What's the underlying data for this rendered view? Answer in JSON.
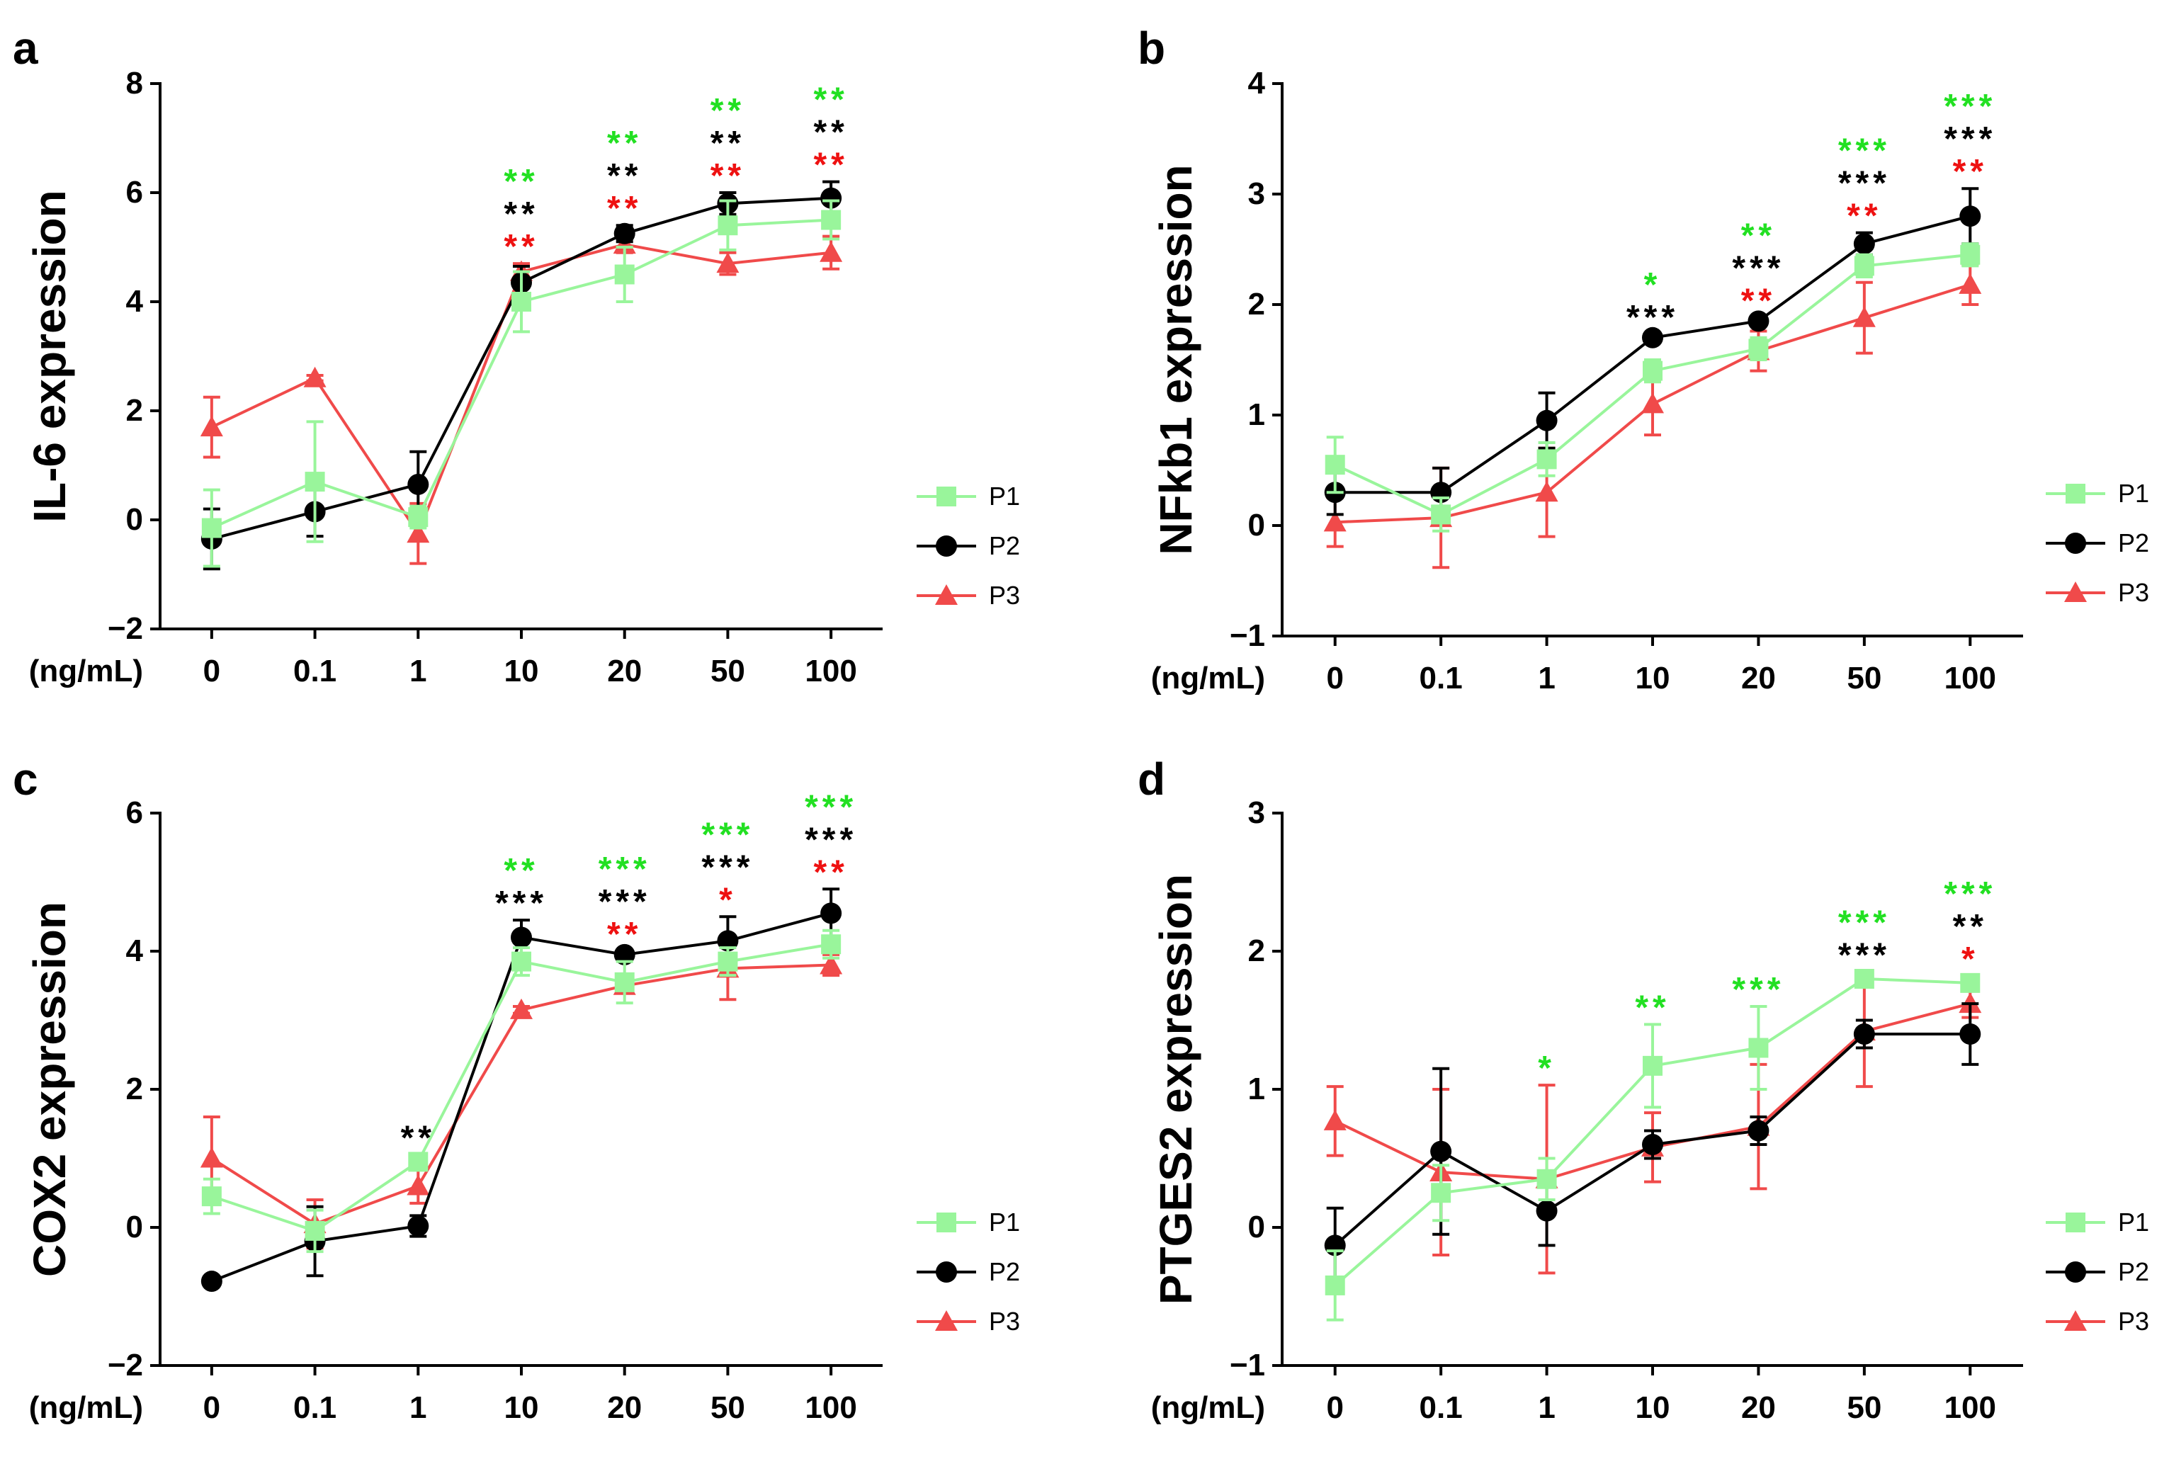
{
  "figure": {
    "x_prefix": "(ng/mL)",
    "colors": {
      "P1": "#99F59B",
      "P2": "#000000",
      "P3": "#F04A4A",
      "sig_green": "#22E022",
      "sig_black": "#000000",
      "sig_red": "#EE1111",
      "axis": "#000000"
    }
  },
  "chart_data": [
    {
      "panel": "a",
      "type": "line",
      "ylabel": "IL-6 expression",
      "categories": [
        "0",
        "0.1",
        "1",
        "10",
        "20",
        "50",
        "100"
      ],
      "ylim": [
        -2,
        8
      ],
      "yticks": [
        -2,
        0,
        2,
        4,
        6,
        8
      ],
      "ytick_labels": [
        "−2",
        "0",
        "2",
        "4",
        "6",
        "8"
      ],
      "legend": {
        "position": "right",
        "entries": [
          "P1",
          "P2",
          "P3"
        ]
      },
      "series": [
        {
          "name": "P1",
          "marker": "square",
          "values": [
            -0.15,
            0.7,
            0.05,
            4.0,
            4.5,
            5.4,
            5.5
          ],
          "errors": [
            0.7,
            1.1,
            0.2,
            0.55,
            0.5,
            0.45,
            0.35
          ]
        },
        {
          "name": "P2",
          "marker": "circle",
          "values": [
            -0.35,
            0.15,
            0.65,
            4.35,
            5.25,
            5.8,
            5.9
          ],
          "errors": [
            0.55,
            0.45,
            0.6,
            0.3,
            0.15,
            0.2,
            0.3
          ]
        },
        {
          "name": "P3",
          "marker": "triangle",
          "values": [
            1.7,
            2.6,
            -0.25,
            4.55,
            5.05,
            4.7,
            4.9
          ],
          "errors": [
            0.55,
            0.05,
            0.55,
            0.15,
            0.15,
            0.2,
            0.3
          ]
        }
      ],
      "significance": [
        {
          "category": "10",
          "green": "**",
          "black": "**",
          "red": "**"
        },
        {
          "category": "20",
          "green": "**",
          "black": "**",
          "red": "**"
        },
        {
          "category": "50",
          "green": "**",
          "black": "**",
          "red": "**"
        },
        {
          "category": "100",
          "green": "**",
          "black": "**",
          "red": "**"
        }
      ]
    },
    {
      "panel": "b",
      "type": "line",
      "ylabel": "NFkb1 expression",
      "categories": [
        "0",
        "0.1",
        "1",
        "10",
        "20",
        "50",
        "100"
      ],
      "ylim": [
        -1,
        4
      ],
      "yticks": [
        -1,
        0,
        1,
        2,
        3,
        4
      ],
      "ytick_labels": [
        "−1",
        "0",
        "1",
        "2",
        "3",
        "4"
      ],
      "legend": {
        "position": "right",
        "entries": [
          "P1",
          "P2",
          "P3"
        ]
      },
      "series": [
        {
          "name": "P1",
          "marker": "square",
          "values": [
            0.55,
            0.1,
            0.6,
            1.4,
            1.6,
            2.35,
            2.45
          ],
          "errors": [
            0.25,
            0.15,
            0.15,
            0.1,
            0.1,
            0.1,
            0.1
          ]
        },
        {
          "name": "P2",
          "marker": "circle",
          "values": [
            0.3,
            0.3,
            0.95,
            1.7,
            1.85,
            2.55,
            2.8
          ],
          "errors": [
            0.2,
            0.22,
            0.25,
            0.03,
            0.03,
            0.1,
            0.25
          ]
        },
        {
          "name": "P3",
          "marker": "triangle",
          "values": [
            0.03,
            0.07,
            0.3,
            1.1,
            1.58,
            1.88,
            2.18
          ],
          "errors": [
            0.22,
            0.45,
            0.4,
            0.28,
            0.18,
            0.32,
            0.18
          ]
        }
      ],
      "significance": [
        {
          "category": "10",
          "green": "*",
          "black": "***",
          "red": ""
        },
        {
          "category": "20",
          "green": "**",
          "black": "***",
          "red": "**"
        },
        {
          "category": "50",
          "green": "***",
          "black": "***",
          "red": "**"
        },
        {
          "category": "100",
          "green": "***",
          "black": "***",
          "red": "**"
        }
      ]
    },
    {
      "panel": "c",
      "type": "line",
      "ylabel": "COX2 expression",
      "categories": [
        "0",
        "0.1",
        "1",
        "10",
        "20",
        "50",
        "100"
      ],
      "ylim": [
        -2,
        6
      ],
      "yticks": [
        -2,
        0,
        2,
        4,
        6
      ],
      "ytick_labels": [
        "−2",
        "0",
        "2",
        "4",
        "6"
      ],
      "legend": {
        "position": "right",
        "entries": [
          "P1",
          "P2",
          "P3"
        ]
      },
      "series": [
        {
          "name": "P1",
          "marker": "square",
          "values": [
            0.45,
            -0.05,
            0.95,
            3.85,
            3.55,
            3.85,
            4.1
          ],
          "errors": [
            0.25,
            0.3,
            0.1,
            0.2,
            0.3,
            0.2,
            0.2
          ]
        },
        {
          "name": "P2",
          "marker": "circle",
          "values": [
            -0.78,
            -0.2,
            0.02,
            4.2,
            3.95,
            4.15,
            4.55
          ],
          "errors": [
            0.03,
            0.5,
            0.15,
            0.25,
            0.05,
            0.35,
            0.35
          ]
        },
        {
          "name": "P3",
          "marker": "triangle",
          "values": [
            1.0,
            0.05,
            0.6,
            3.15,
            3.5,
            3.75,
            3.8
          ],
          "errors": [
            0.6,
            0.35,
            0.25,
            0.05,
            0.1,
            0.45,
            0.15
          ]
        }
      ],
      "significance": [
        {
          "category": "1",
          "green": "",
          "black": "**",
          "red": ""
        },
        {
          "category": "10",
          "green": "**",
          "black": "***",
          "red": ""
        },
        {
          "category": "20",
          "green": "***",
          "black": "***",
          "red": "**"
        },
        {
          "category": "50",
          "green": "***",
          "black": "***",
          "red": "*"
        },
        {
          "category": "100",
          "green": "***",
          "black": "***",
          "red": "**"
        }
      ]
    },
    {
      "panel": "d",
      "type": "line",
      "ylabel": "PTGES2 expression",
      "categories": [
        "0",
        "0.1",
        "1",
        "10",
        "20",
        "50",
        "100"
      ],
      "ylim": [
        -1,
        3
      ],
      "yticks": [
        -1,
        0,
        1,
        2,
        3
      ],
      "ytick_labels": [
        "−1",
        "0",
        "1",
        "2",
        "3"
      ],
      "legend": {
        "position": "right",
        "entries": [
          "P1",
          "P2",
          "P3"
        ]
      },
      "series": [
        {
          "name": "P1",
          "marker": "square",
          "values": [
            -0.42,
            0.25,
            0.35,
            1.17,
            1.3,
            1.8,
            1.77
          ],
          "errors": [
            0.25,
            0.2,
            0.15,
            0.3,
            0.3,
            0.05,
            0.05
          ]
        },
        {
          "name": "P2",
          "marker": "circle",
          "values": [
            -0.13,
            0.55,
            0.12,
            0.6,
            0.7,
            1.4,
            1.4
          ],
          "errors": [
            0.27,
            0.6,
            0.25,
            0.1,
            0.1,
            0.1,
            0.22
          ]
        },
        {
          "name": "P3",
          "marker": "triangle",
          "values": [
            0.77,
            0.4,
            0.35,
            0.58,
            0.73,
            1.42,
            1.62
          ],
          "errors": [
            0.25,
            0.6,
            0.68,
            0.25,
            0.45,
            0.4,
            0.1
          ]
        }
      ],
      "significance": [
        {
          "category": "1",
          "green": "*",
          "black": "",
          "red": ""
        },
        {
          "category": "10",
          "green": "**",
          "black": "",
          "red": ""
        },
        {
          "category": "20",
          "green": "***",
          "black": "",
          "red": ""
        },
        {
          "category": "50",
          "green": "***",
          "black": "***",
          "red": ""
        },
        {
          "category": "100",
          "green": "***",
          "black": "**",
          "red": "*"
        }
      ]
    }
  ]
}
